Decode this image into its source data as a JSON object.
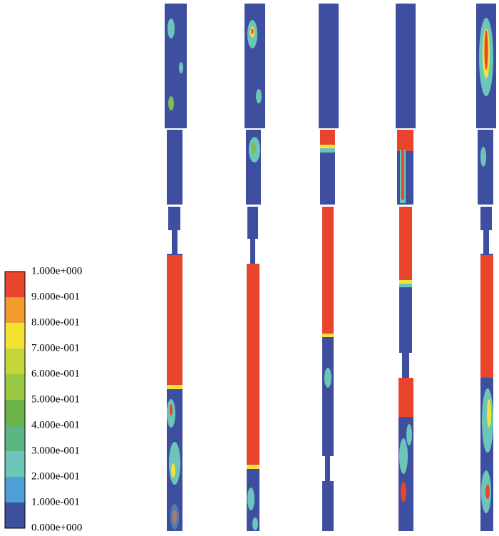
{
  "legend": {
    "labels": [
      "1.000e+000",
      "9.000e-001",
      "8.000e-001",
      "7.000e-001",
      "6.000e-001",
      "5.000e-001",
      "4.000e-001",
      "3.000e-001",
      "2.000e-001",
      "1.000e-001",
      "0.000e+000"
    ],
    "colors": [
      "#e8452c",
      "#f39a2e",
      "#f4e233",
      "#c3d63a",
      "#98c741",
      "#6cb346",
      "#5db583",
      "#6cc5b9",
      "#4f9fd6",
      "#3f4fa0"
    ]
  }
}
